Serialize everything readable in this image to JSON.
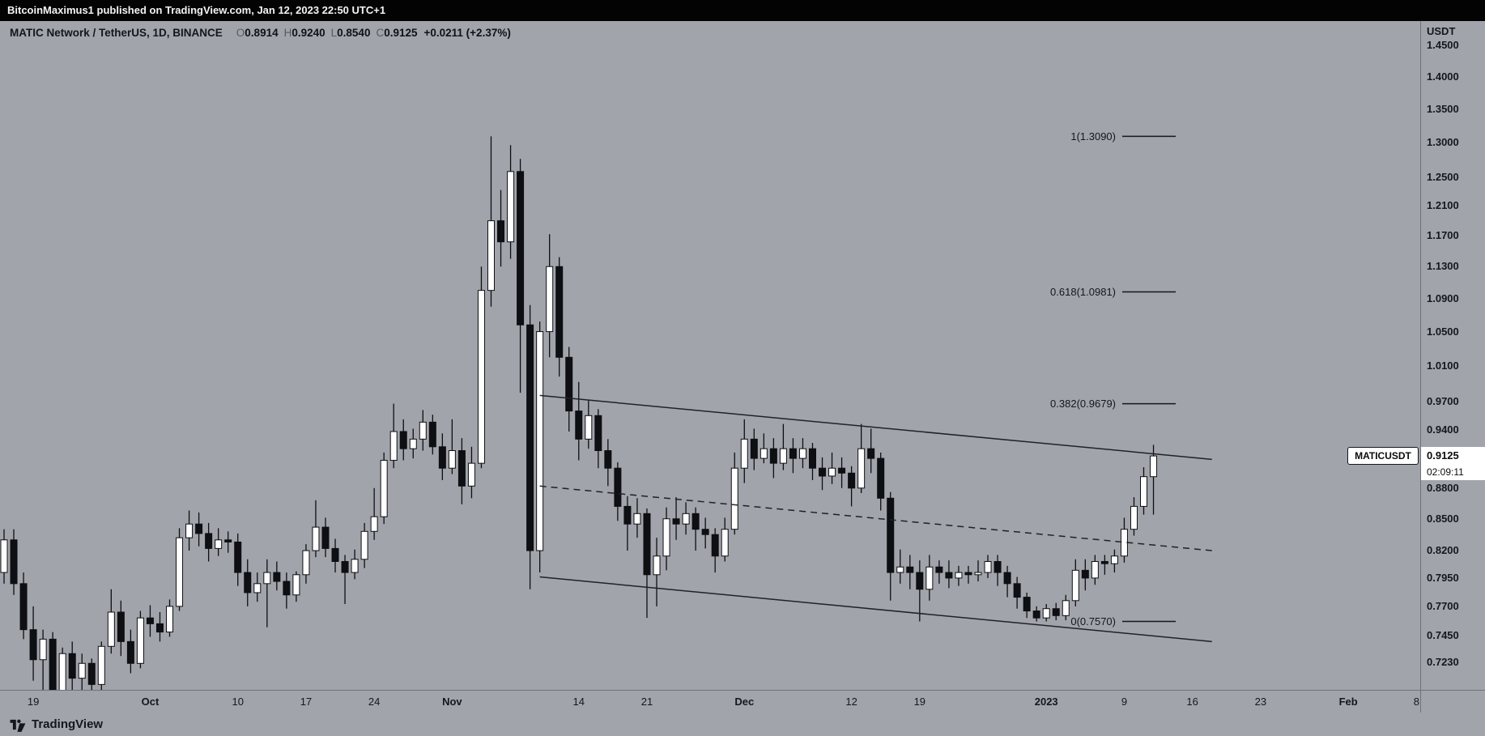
{
  "topbar": {
    "text": "BitcoinMaximus1 published on TradingView.com, Jan 12, 2023 22:50 UTC+1"
  },
  "legend": {
    "title": "MATIC Network / TetherUS, 1D, BINANCE",
    "ohlc": [
      {
        "label": "O",
        "value": "0.8914"
      },
      {
        "label": "H",
        "value": "0.9240"
      },
      {
        "label": "L",
        "value": "0.8540"
      },
      {
        "label": "C",
        "value": "0.9125"
      }
    ],
    "change": "+0.0211 (+2.37%)"
  },
  "price_scale": {
    "currency": "USDT",
    "ticks": [
      "1.4500",
      "1.4000",
      "1.3500",
      "1.3000",
      "1.2500",
      "1.2100",
      "1.1700",
      "1.1300",
      "1.0900",
      "1.0500",
      "1.0100",
      "0.9700",
      "0.9400",
      "0.9100",
      "0.8800",
      "0.8500",
      "0.8200",
      "0.7950",
      "0.7700",
      "0.7450",
      "0.7230"
    ],
    "symbol_label": "MATICUSDT",
    "last_price_label": "0.9125",
    "countdown": "02:09:11"
  },
  "time_scale": {
    "labels": [
      {
        "text": "19",
        "day": 3,
        "major": false
      },
      {
        "text": "Oct",
        "day": 15,
        "major": true
      },
      {
        "text": "10",
        "day": 24,
        "major": false
      },
      {
        "text": "17",
        "day": 31,
        "major": false
      },
      {
        "text": "24",
        "day": 38,
        "major": false
      },
      {
        "text": "Nov",
        "day": 46,
        "major": true
      },
      {
        "text": "14",
        "day": 59,
        "major": false
      },
      {
        "text": "21",
        "day": 66,
        "major": false
      },
      {
        "text": "Dec",
        "day": 76,
        "major": true
      },
      {
        "text": "12",
        "day": 87,
        "major": false
      },
      {
        "text": "19",
        "day": 94,
        "major": false
      },
      {
        "text": "2023",
        "day": 107,
        "major": true
      },
      {
        "text": "9",
        "day": 115,
        "major": false
      },
      {
        "text": "16",
        "day": 122,
        "major": false
      },
      {
        "text": "23",
        "day": 129,
        "major": false
      },
      {
        "text": "Feb",
        "day": 138,
        "major": true
      },
      {
        "text": "8",
        "day": 145,
        "major": false
      }
    ]
  },
  "watermark": {
    "brand": "TradingView"
  },
  "chart_data": {
    "type": "candlestick",
    "symbol": "MATIC Network / TetherUS",
    "interval": "1D",
    "exchange": "BINANCE",
    "scale": "log",
    "start_date": "2022-09-16",
    "bar_period_days": 1,
    "visible_price_range": [
      0.7,
      1.459
    ],
    "current_bar": {
      "open": 0.8914,
      "high": 0.924,
      "low": 0.854,
      "close": 0.9125,
      "change": "+0.0211 (+2.37%)"
    },
    "candles": [
      [
        0.8,
        0.84,
        0.79,
        0.83
      ],
      [
        0.83,
        0.84,
        0.78,
        0.79
      ],
      [
        0.79,
        0.8,
        0.742,
        0.75
      ],
      [
        0.75,
        0.77,
        0.708,
        0.725
      ],
      [
        0.725,
        0.75,
        0.7,
        0.742
      ],
      [
        0.742,
        0.748,
        0.655,
        0.7
      ],
      [
        0.7,
        0.735,
        0.663,
        0.73
      ],
      [
        0.73,
        0.74,
        0.7,
        0.71
      ],
      [
        0.71,
        0.73,
        0.695,
        0.722
      ],
      [
        0.722,
        0.726,
        0.694,
        0.705
      ],
      [
        0.705,
        0.74,
        0.7,
        0.736
      ],
      [
        0.736,
        0.785,
        0.73,
        0.765
      ],
      [
        0.765,
        0.775,
        0.728,
        0.74
      ],
      [
        0.74,
        0.75,
        0.714,
        0.722
      ],
      [
        0.722,
        0.766,
        0.718,
        0.76
      ],
      [
        0.76,
        0.771,
        0.744,
        0.755
      ],
      [
        0.755,
        0.765,
        0.74,
        0.748
      ],
      [
        0.748,
        0.776,
        0.744,
        0.77
      ],
      [
        0.77,
        0.841,
        0.766,
        0.832
      ],
      [
        0.832,
        0.858,
        0.82,
        0.845
      ],
      [
        0.845,
        0.856,
        0.824,
        0.836
      ],
      [
        0.836,
        0.846,
        0.81,
        0.822
      ],
      [
        0.822,
        0.841,
        0.815,
        0.83
      ],
      [
        0.83,
        0.838,
        0.818,
        0.828
      ],
      [
        0.828,
        0.836,
        0.788,
        0.8
      ],
      [
        0.8,
        0.812,
        0.77,
        0.782
      ],
      [
        0.782,
        0.8,
        0.774,
        0.79
      ],
      [
        0.79,
        0.812,
        0.752,
        0.8
      ],
      [
        0.8,
        0.81,
        0.784,
        0.792
      ],
      [
        0.792,
        0.8,
        0.768,
        0.78
      ],
      [
        0.78,
        0.801,
        0.774,
        0.798
      ],
      [
        0.798,
        0.826,
        0.79,
        0.82
      ],
      [
        0.82,
        0.868,
        0.814,
        0.842
      ],
      [
        0.842,
        0.851,
        0.814,
        0.822
      ],
      [
        0.822,
        0.831,
        0.8,
        0.81
      ],
      [
        0.81,
        0.816,
        0.772,
        0.8
      ],
      [
        0.8,
        0.821,
        0.794,
        0.812
      ],
      [
        0.812,
        0.846,
        0.804,
        0.838
      ],
      [
        0.838,
        0.88,
        0.83,
        0.852
      ],
      [
        0.852,
        0.916,
        0.845,
        0.908
      ],
      [
        0.908,
        0.968,
        0.9,
        0.938
      ],
      [
        0.938,
        0.951,
        0.908,
        0.92
      ],
      [
        0.92,
        0.941,
        0.91,
        0.93
      ],
      [
        0.93,
        0.961,
        0.918,
        0.948
      ],
      [
        0.948,
        0.956,
        0.914,
        0.922
      ],
      [
        0.922,
        0.936,
        0.888,
        0.9
      ],
      [
        0.9,
        0.951,
        0.894,
        0.918
      ],
      [
        0.918,
        0.931,
        0.864,
        0.882
      ],
      [
        0.882,
        0.922,
        0.87,
        0.905
      ],
      [
        0.905,
        1.13,
        0.9,
        1.1
      ],
      [
        1.1,
        1.309,
        1.08,
        1.19
      ],
      [
        1.19,
        1.232,
        1.13,
        1.162
      ],
      [
        1.162,
        1.296,
        1.14,
        1.258
      ],
      [
        1.258,
        1.276,
        0.98,
        1.058
      ],
      [
        1.058,
        1.082,
        0.785,
        0.82
      ],
      [
        0.82,
        1.062,
        0.8,
        1.05
      ],
      [
        1.05,
        1.172,
        1.02,
        1.13
      ],
      [
        1.13,
        1.142,
        0.998,
        1.02
      ],
      [
        1.02,
        1.032,
        0.938,
        0.96
      ],
      [
        0.96,
        0.992,
        0.908,
        0.93
      ],
      [
        0.93,
        0.972,
        0.92,
        0.955
      ],
      [
        0.955,
        0.962,
        0.9,
        0.918
      ],
      [
        0.918,
        0.93,
        0.882,
        0.9
      ],
      [
        0.9,
        0.906,
        0.848,
        0.862
      ],
      [
        0.862,
        0.872,
        0.82,
        0.845
      ],
      [
        0.845,
        0.87,
        0.832,
        0.855
      ],
      [
        0.855,
        0.86,
        0.76,
        0.798
      ],
      [
        0.798,
        0.832,
        0.77,
        0.815
      ],
      [
        0.815,
        0.861,
        0.802,
        0.85
      ],
      [
        0.85,
        0.871,
        0.83,
        0.845
      ],
      [
        0.845,
        0.866,
        0.835,
        0.855
      ],
      [
        0.855,
        0.861,
        0.82,
        0.84
      ],
      [
        0.84,
        0.851,
        0.822,
        0.835
      ],
      [
        0.835,
        0.841,
        0.8,
        0.815
      ],
      [
        0.815,
        0.851,
        0.81,
        0.84
      ],
      [
        0.84,
        0.916,
        0.835,
        0.9
      ],
      [
        0.9,
        0.951,
        0.885,
        0.93
      ],
      [
        0.93,
        0.941,
        0.898,
        0.91
      ],
      [
        0.91,
        0.936,
        0.905,
        0.92
      ],
      [
        0.92,
        0.931,
        0.89,
        0.905
      ],
      [
        0.905,
        0.946,
        0.898,
        0.92
      ],
      [
        0.92,
        0.931,
        0.895,
        0.91
      ],
      [
        0.91,
        0.931,
        0.9,
        0.92
      ],
      [
        0.92,
        0.926,
        0.888,
        0.9
      ],
      [
        0.9,
        0.911,
        0.878,
        0.892
      ],
      [
        0.892,
        0.916,
        0.884,
        0.9
      ],
      [
        0.9,
        0.911,
        0.88,
        0.895
      ],
      [
        0.895,
        0.902,
        0.862,
        0.88
      ],
      [
        0.88,
        0.946,
        0.875,
        0.92
      ],
      [
        0.92,
        0.941,
        0.895,
        0.91
      ],
      [
        0.91,
        0.916,
        0.858,
        0.87
      ],
      [
        0.87,
        0.876,
        0.775,
        0.8
      ],
      [
        0.8,
        0.821,
        0.79,
        0.805
      ],
      [
        0.805,
        0.816,
        0.785,
        0.8
      ],
      [
        0.8,
        0.811,
        0.757,
        0.785
      ],
      [
        0.785,
        0.816,
        0.775,
        0.805
      ],
      [
        0.805,
        0.811,
        0.79,
        0.8
      ],
      [
        0.8,
        0.811,
        0.786,
        0.795
      ],
      [
        0.795,
        0.806,
        0.788,
        0.8
      ],
      [
        0.8,
        0.806,
        0.79,
        0.798
      ],
      [
        0.798,
        0.811,
        0.792,
        0.8
      ],
      [
        0.8,
        0.816,
        0.795,
        0.81
      ],
      [
        0.81,
        0.816,
        0.788,
        0.8
      ],
      [
        0.8,
        0.806,
        0.778,
        0.79
      ],
      [
        0.79,
        0.796,
        0.768,
        0.778
      ],
      [
        0.778,
        0.782,
        0.76,
        0.766
      ],
      [
        0.766,
        0.77,
        0.757,
        0.76
      ],
      [
        0.76,
        0.772,
        0.757,
        0.768
      ],
      [
        0.768,
        0.773,
        0.758,
        0.762
      ],
      [
        0.762,
        0.78,
        0.758,
        0.775
      ],
      [
        0.775,
        0.812,
        0.77,
        0.802
      ],
      [
        0.802,
        0.812,
        0.784,
        0.795
      ],
      [
        0.795,
        0.816,
        0.789,
        0.81
      ],
      [
        0.81,
        0.816,
        0.798,
        0.808
      ],
      [
        0.808,
        0.821,
        0.8,
        0.815
      ],
      [
        0.815,
        0.851,
        0.809,
        0.84
      ],
      [
        0.84,
        0.871,
        0.834,
        0.862
      ],
      [
        0.862,
        0.901,
        0.854,
        0.8914
      ],
      [
        0.8914,
        0.924,
        0.854,
        0.9125
      ]
    ],
    "fib_retracement": [
      {
        "label": "1(1.3090)",
        "price": 1.309
      },
      {
        "label": "0.618(1.0981)",
        "price": 1.0981
      },
      {
        "label": "0.382(0.9679)",
        "price": 0.9679
      },
      {
        "label": "0(0.7570)",
        "price": 0.757
      }
    ],
    "channel": {
      "upper": [
        [
          55,
          0.977
        ],
        [
          124,
          0.909
        ]
      ],
      "lower": [
        [
          55,
          0.796
        ],
        [
          124,
          0.74
        ]
      ],
      "mid": [
        [
          55,
          0.882
        ],
        [
          124,
          0.82
        ]
      ],
      "mid_style": "dashed"
    },
    "colors": {
      "up": "#ffffff",
      "down": "#0e0f12",
      "border": "#0e0f12",
      "drawing_line": "#1f2228"
    }
  }
}
